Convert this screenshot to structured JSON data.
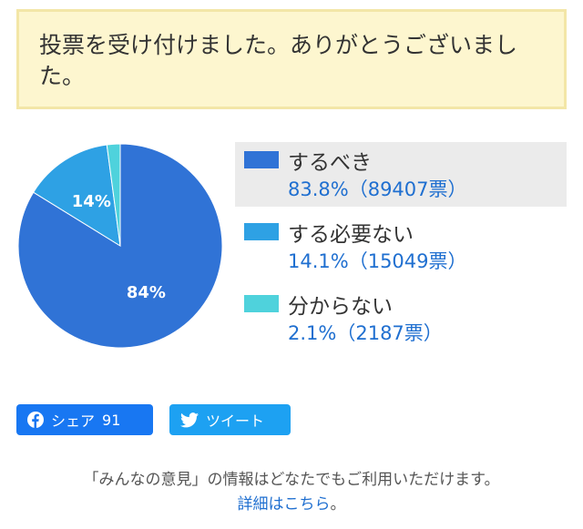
{
  "notice": {
    "text": "投票を受け付けました。ありがとうございました。"
  },
  "chart_data": {
    "type": "pie",
    "slices": [
      {
        "name": "するべき",
        "value": 83.8,
        "label": "84%",
        "color": "#3073d6"
      },
      {
        "name": "する必要ない",
        "value": 14.1,
        "label": "14%",
        "color": "#2ea1e4"
      },
      {
        "name": "分からない",
        "value": 2.1,
        "label": "",
        "color": "#4fd2dc"
      }
    ]
  },
  "legend": {
    "items": [
      {
        "label": "するべき",
        "value": "83.8%（89407票）",
        "color": "#3073d6",
        "selected": true
      },
      {
        "label": "する必要ない",
        "value": "14.1%（15049票）",
        "color": "#2ea1e4",
        "selected": false
      },
      {
        "label": "分からない",
        "value": "2.1%（2187票）",
        "color": "#4fd2dc",
        "selected": false
      }
    ]
  },
  "share": {
    "facebook_label": "シェア",
    "facebook_count": "91",
    "twitter_label": "ツイート",
    "facebook_icon": "facebook-icon",
    "twitter_icon": "twitter-icon"
  },
  "footer": {
    "text": "「みんなの意見」の情報はどなたでもご利用いただけます。",
    "link": "詳細はこちら",
    "suffix": "。"
  }
}
